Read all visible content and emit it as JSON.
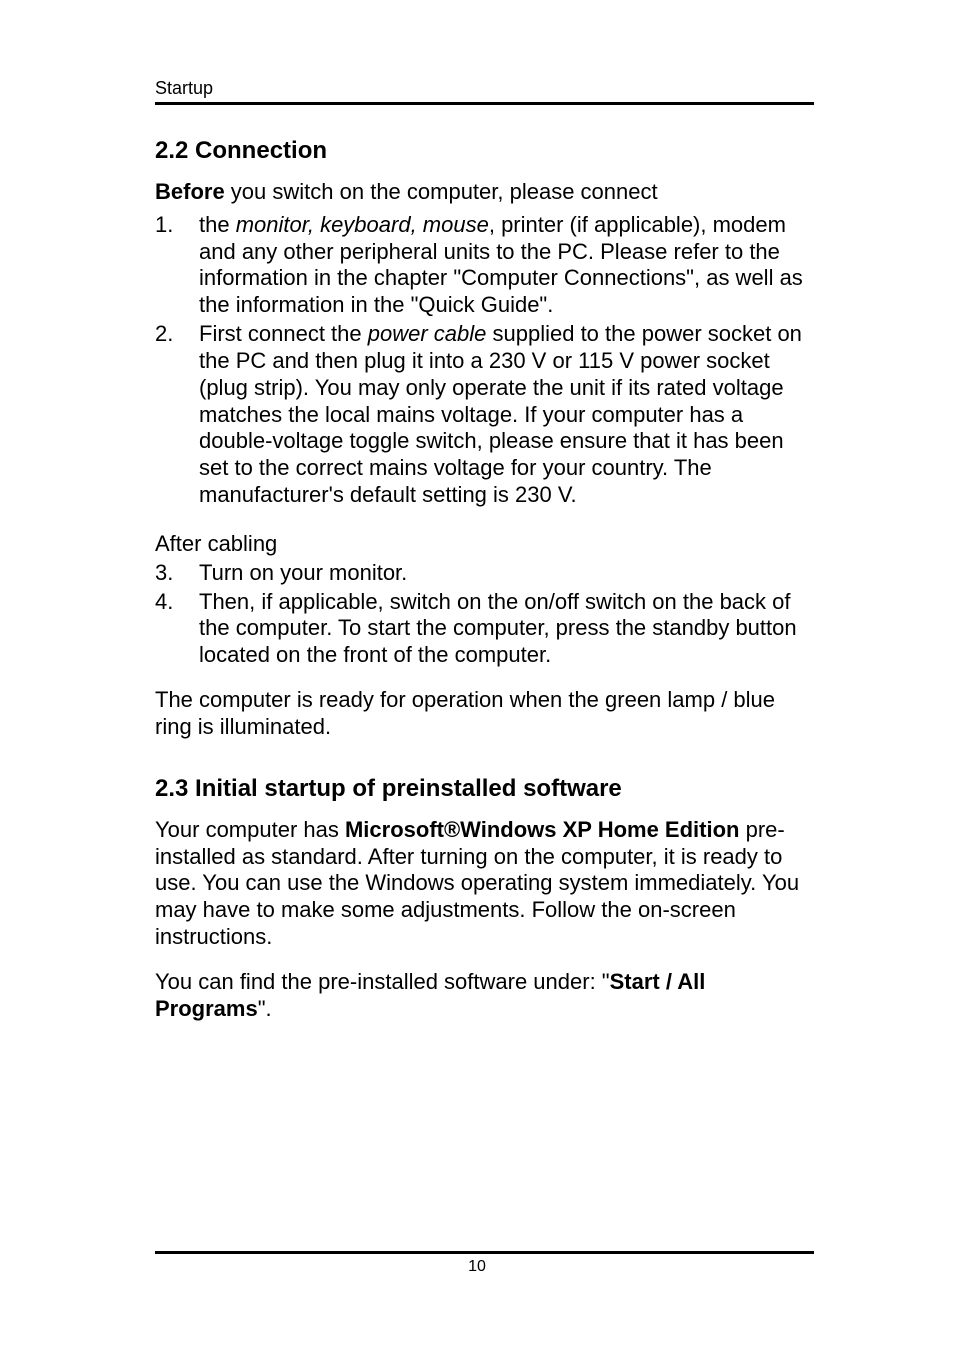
{
  "header": {
    "running": "Startup"
  },
  "section22": {
    "heading": "2.2 Connection",
    "before_bold": "Before",
    "before_rest": " you switch on the computer, please connect",
    "items": [
      {
        "num": "1.",
        "lead": "the ",
        "italic": "monitor, keyboard, mouse",
        "rest": ", printer (if applicable), modem and any other peripheral units to the PC. Please refer to the information in the chapter \"Computer Connections\", as well as the information in the \"Quick Guide\"."
      },
      {
        "num": "2.",
        "lead": "First connect the ",
        "italic": "power cable",
        "rest": " supplied to the power socket on the PC and then plug it into a 230 V or 115 V power socket (plug strip). You may only operate the unit if its rated voltage matches the local mains voltage. If your computer has a double-voltage toggle switch, please ensure that it has been set to the correct mains voltage for your country. The manufacturer's default setting is 230 V."
      }
    ],
    "after_cabling": "After cabling",
    "items2": [
      {
        "num": "3.",
        "text": "Turn on your monitor."
      },
      {
        "num": "4.",
        "text": "Then, if applicable, switch on the on/off switch on the back of the computer. To start the computer, press the standby button located on the front of the computer."
      }
    ],
    "ready": "The computer is ready for operation when the green lamp / blue ring is illuminated."
  },
  "section23": {
    "heading": "2.3 Initial startup of preinstalled software",
    "p1_a": "Your computer has ",
    "p1_bold": "Microsoft®Windows XP Home Edition",
    "p1_b": " pre-installed as standard. After turning on the computer, it is ready to use. You can use the Windows operating system immediately. You may have to make some adjustments. Follow the on-screen instructions.",
    "p2_a": "You can find the pre-installed software under: \"",
    "p2_bold": "Start / All Programs",
    "p2_b": "\"."
  },
  "footer": {
    "page": "10"
  }
}
